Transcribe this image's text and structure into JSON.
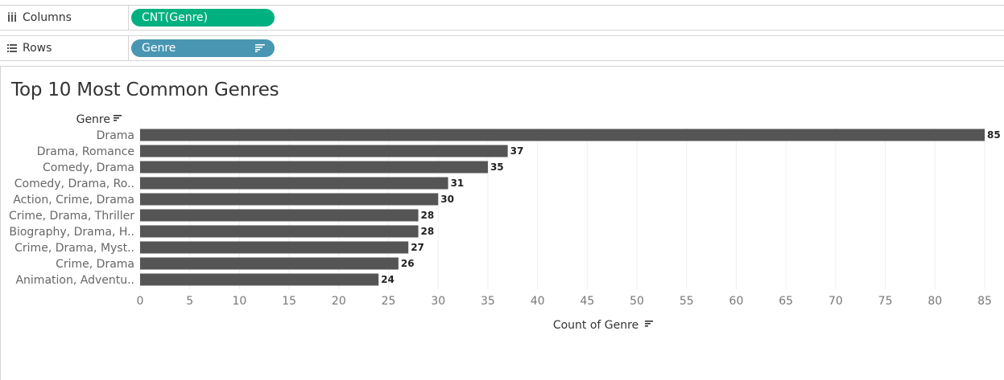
{
  "shelves": {
    "columns": {
      "label": "Columns",
      "icon": "columns-icon",
      "pill": "CNT(Genre)",
      "pill_color": "#00b180"
    },
    "rows": {
      "label": "Rows",
      "icon": "rows-icon",
      "pill": "Genre",
      "pill_color": "#4996b2"
    }
  },
  "chart_data": {
    "type": "bar",
    "orientation": "horizontal",
    "title": "Top 10 Most Common Genres",
    "row_header": "Genre",
    "xlabel": "Count of Genre",
    "categories": [
      "Drama",
      "Drama, Romance",
      "Comedy, Drama",
      "Comedy, Drama, Ro..",
      "Action, Crime, Drama",
      "Crime, Drama, Thriller",
      "Biography, Drama, H..",
      "Crime, Drama, Myst..",
      "Crime, Drama",
      "Animation, Adventu.."
    ],
    "values": [
      85,
      37,
      35,
      31,
      30,
      28,
      28,
      27,
      26,
      24
    ],
    "xlim": [
      0,
      85
    ],
    "xticks": [
      0,
      5,
      10,
      15,
      20,
      25,
      30,
      35,
      40,
      45,
      50,
      55,
      60,
      65,
      70,
      75,
      80,
      85
    ],
    "grid": true,
    "bar_color": "#555555",
    "sorted": true
  }
}
